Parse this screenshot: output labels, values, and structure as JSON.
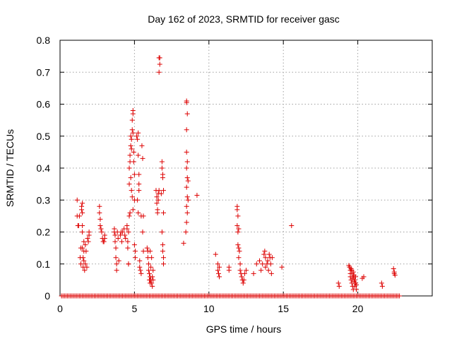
{
  "chart_data": {
    "type": "scatter",
    "title": "Day 162 of 2023, SRMTID for receiver gasc",
    "xlabel": "GPS time / hours",
    "ylabel": "SRMTID / TECUs",
    "xlim": [
      0,
      25
    ],
    "ylim": [
      0,
      0.8
    ],
    "xticks": [
      0,
      5,
      10,
      15,
      20
    ],
    "yticks": [
      0,
      0.1,
      0.2,
      0.3,
      0.4,
      0.5,
      0.6,
      0.7,
      0.8
    ],
    "xtick_labels": [
      "0",
      "5",
      "10",
      "15",
      "20"
    ],
    "ytick_labels": [
      "0",
      "0.1",
      "0.2",
      "0.3",
      "0.4",
      "0.5",
      "0.6",
      "0.7",
      "0.8"
    ],
    "grid": true,
    "marker": "+",
    "color": "#dd0000",
    "zero_band": {
      "x_start": 0.1,
      "x_end": 22.8,
      "step": 0.1,
      "y": 0
    },
    "series": [
      {
        "name": "SRMTID",
        "points": [
          [
            1.15,
            0.3
          ],
          [
            1.15,
            0.25
          ],
          [
            1.2,
            0.22
          ],
          [
            1.25,
            0.22
          ],
          [
            1.3,
            0.25
          ],
          [
            1.35,
            0.12
          ],
          [
            1.4,
            0.15
          ],
          [
            1.4,
            0.1
          ],
          [
            1.45,
            0.28
          ],
          [
            1.45,
            0.27
          ],
          [
            1.5,
            0.29
          ],
          [
            1.5,
            0.26
          ],
          [
            1.5,
            0.22
          ],
          [
            1.5,
            0.2
          ],
          [
            1.5,
            0.15
          ],
          [
            1.55,
            0.12
          ],
          [
            1.55,
            0.09
          ],
          [
            1.6,
            0.17
          ],
          [
            1.6,
            0.14
          ],
          [
            1.6,
            0.11
          ],
          [
            1.65,
            0.08
          ],
          [
            1.7,
            0.16
          ],
          [
            1.7,
            0.1
          ],
          [
            1.75,
            0.14
          ],
          [
            1.8,
            0.09
          ],
          [
            1.85,
            0.18
          ],
          [
            1.9,
            0.17
          ],
          [
            1.95,
            0.2
          ],
          [
            1.95,
            0.19
          ],
          [
            2.65,
            0.28
          ],
          [
            2.65,
            0.26
          ],
          [
            2.7,
            0.24
          ],
          [
            2.7,
            0.22
          ],
          [
            2.75,
            0.21
          ],
          [
            2.8,
            0.2
          ],
          [
            2.85,
            0.18
          ],
          [
            2.9,
            0.17
          ],
          [
            2.95,
            0.17
          ],
          [
            3.0,
            0.18
          ],
          [
            3.0,
            0.19
          ],
          [
            3.65,
            0.21
          ],
          [
            3.65,
            0.2
          ],
          [
            3.7,
            0.19
          ],
          [
            3.7,
            0.17
          ],
          [
            3.75,
            0.15
          ],
          [
            3.75,
            0.12
          ],
          [
            3.8,
            0.1
          ],
          [
            3.8,
            0.08
          ],
          [
            3.85,
            0.2
          ],
          [
            3.9,
            0.18
          ],
          [
            3.95,
            0.11
          ],
          [
            4.05,
            0.19
          ],
          [
            4.1,
            0.2
          ],
          [
            4.15,
            0.17
          ],
          [
            4.2,
            0.2
          ],
          [
            4.3,
            0.21
          ],
          [
            4.35,
            0.19
          ],
          [
            4.4,
            0.18
          ],
          [
            4.5,
            0.21
          ],
          [
            4.5,
            0.22
          ],
          [
            4.55,
            0.17
          ],
          [
            4.55,
            0.15
          ],
          [
            4.6,
            0.1
          ],
          [
            4.6,
            0.2
          ],
          [
            4.65,
            0.35
          ],
          [
            4.65,
            0.4
          ],
          [
            4.7,
            0.26
          ],
          [
            4.7,
            0.42
          ],
          [
            4.7,
            0.44
          ],
          [
            4.75,
            0.47
          ],
          [
            4.75,
            0.5
          ],
          [
            4.8,
            0.46
          ],
          [
            4.8,
            0.49
          ],
          [
            4.8,
            0.33
          ],
          [
            4.85,
            0.52
          ],
          [
            4.85,
            0.55
          ],
          [
            4.9,
            0.58
          ],
          [
            4.9,
            0.57
          ],
          [
            4.9,
            0.51
          ],
          [
            4.95,
            0.45
          ],
          [
            4.95,
            0.42
          ],
          [
            5.0,
            0.38
          ],
          [
            5.0,
            0.3
          ],
          [
            5.0,
            0.16
          ],
          [
            5.05,
            0.14
          ],
          [
            5.05,
            0.12
          ],
          [
            4.9,
            0.27
          ],
          [
            4.85,
            0.31
          ],
          [
            4.75,
            0.37
          ],
          [
            4.65,
            0.25
          ],
          [
            4.6,
            0.1
          ],
          [
            5.15,
            0.5
          ],
          [
            5.2,
            0.49
          ],
          [
            5.25,
            0.51
          ],
          [
            5.25,
            0.44
          ],
          [
            5.3,
            0.38
          ],
          [
            5.3,
            0.35
          ],
          [
            5.3,
            0.33
          ],
          [
            5.2,
            0.3
          ],
          [
            5.25,
            0.26
          ],
          [
            5.35,
            0.11
          ],
          [
            5.35,
            0.09
          ],
          [
            5.4,
            0.08
          ],
          [
            5.45,
            0.07
          ],
          [
            5.45,
            0.25
          ],
          [
            5.5,
            0.47
          ],
          [
            5.55,
            0.43
          ],
          [
            5.55,
            0.2
          ],
          [
            5.6,
            0.14
          ],
          [
            5.6,
            0.25
          ],
          [
            5.85,
            0.15
          ],
          [
            5.9,
            0.14
          ],
          [
            5.9,
            0.12
          ],
          [
            5.95,
            0.1
          ],
          [
            5.95,
            0.08
          ],
          [
            6.0,
            0.07
          ],
          [
            6.0,
            0.05
          ],
          [
            6.05,
            0.06
          ],
          [
            6.05,
            0.04
          ],
          [
            6.1,
            0.05
          ],
          [
            6.1,
            0.09
          ],
          [
            6.15,
            0.12
          ],
          [
            6.15,
            0.04
          ],
          [
            6.2,
            0.06
          ],
          [
            6.2,
            0.03
          ],
          [
            6.25,
            0.05
          ],
          [
            6.25,
            0.08
          ],
          [
            6.05,
            0.14
          ],
          [
            6.45,
            0.33
          ],
          [
            6.5,
            0.31
          ],
          [
            6.5,
            0.29
          ],
          [
            6.55,
            0.27
          ],
          [
            6.55,
            0.26
          ],
          [
            6.6,
            0.32
          ],
          [
            6.6,
            0.3
          ],
          [
            6.65,
            0.33
          ],
          [
            6.65,
            0.745
          ],
          [
            6.7,
            0.745
          ],
          [
            6.7,
            0.725
          ],
          [
            6.65,
            0.7
          ],
          [
            6.85,
            0.42
          ],
          [
            6.85,
            0.4
          ],
          [
            6.9,
            0.38
          ],
          [
            6.9,
            0.37
          ],
          [
            6.95,
            0.33
          ],
          [
            6.95,
            0.26
          ],
          [
            6.85,
            0.2
          ],
          [
            6.9,
            0.16
          ],
          [
            6.9,
            0.14
          ],
          [
            6.95,
            0.12
          ],
          [
            6.95,
            0.1
          ],
          [
            6.8,
            0.32
          ],
          [
            8.3,
            0.165
          ],
          [
            8.5,
            0.61
          ],
          [
            8.5,
            0.605
          ],
          [
            8.55,
            0.57
          ],
          [
            8.5,
            0.52
          ],
          [
            8.5,
            0.45
          ],
          [
            8.55,
            0.42
          ],
          [
            8.5,
            0.4
          ],
          [
            8.55,
            0.37
          ],
          [
            8.6,
            0.36
          ],
          [
            8.5,
            0.34
          ],
          [
            8.55,
            0.31
          ],
          [
            8.6,
            0.3
          ],
          [
            8.5,
            0.28
          ],
          [
            8.55,
            0.26
          ],
          [
            8.5,
            0.23
          ],
          [
            8.45,
            0.2
          ],
          [
            9.2,
            0.315
          ],
          [
            10.45,
            0.13
          ],
          [
            10.6,
            0.1
          ],
          [
            10.6,
            0.08
          ],
          [
            10.65,
            0.07
          ],
          [
            10.7,
            0.09
          ],
          [
            10.7,
            0.06
          ],
          [
            11.35,
            0.09
          ],
          [
            11.35,
            0.08
          ],
          [
            11.9,
            0.28
          ],
          [
            11.9,
            0.27
          ],
          [
            11.95,
            0.25
          ],
          [
            11.9,
            0.22
          ],
          [
            11.95,
            0.2
          ],
          [
            12.0,
            0.21
          ],
          [
            11.95,
            0.16
          ],
          [
            12.0,
            0.15
          ],
          [
            12.05,
            0.14
          ],
          [
            12.0,
            0.12
          ],
          [
            12.1,
            0.1
          ],
          [
            12.1,
            0.08
          ],
          [
            12.15,
            0.07
          ],
          [
            12.2,
            0.06
          ],
          [
            12.25,
            0.05
          ],
          [
            12.3,
            0.04
          ],
          [
            12.35,
            0.05
          ],
          [
            12.4,
            0.07
          ],
          [
            12.5,
            0.08
          ],
          [
            13.0,
            0.07
          ],
          [
            13.2,
            0.1
          ],
          [
            13.4,
            0.11
          ],
          [
            13.5,
            0.08
          ],
          [
            13.6,
            0.1
          ],
          [
            13.7,
            0.13
          ],
          [
            13.75,
            0.14
          ],
          [
            13.8,
            0.12
          ],
          [
            13.8,
            0.09
          ],
          [
            13.9,
            0.1
          ],
          [
            13.95,
            0.11
          ],
          [
            14.0,
            0.08
          ],
          [
            14.05,
            0.13
          ],
          [
            14.1,
            0.12
          ],
          [
            14.15,
            0.1
          ],
          [
            14.2,
            0.07
          ],
          [
            14.25,
            0.12
          ],
          [
            14.9,
            0.09
          ],
          [
            15.55,
            0.22
          ],
          [
            18.7,
            0.04
          ],
          [
            18.75,
            0.03
          ],
          [
            19.4,
            0.095
          ],
          [
            19.45,
            0.09
          ],
          [
            19.5,
            0.08
          ],
          [
            19.5,
            0.06
          ],
          [
            19.55,
            0.085
          ],
          [
            19.55,
            0.05
          ],
          [
            19.6,
            0.07
          ],
          [
            19.6,
            0.04
          ],
          [
            19.65,
            0.03
          ],
          [
            19.65,
            0.055
          ],
          [
            19.7,
            0.02
          ],
          [
            19.7,
            0.075
          ],
          [
            19.75,
            0.045
          ],
          [
            19.75,
            0.065
          ],
          [
            19.8,
            0.03
          ],
          [
            19.8,
            0.05
          ],
          [
            19.85,
            0.04
          ],
          [
            19.85,
            0.06
          ],
          [
            19.9,
            0.02
          ],
          [
            19.9,
            0.035
          ],
          [
            19.5,
            0.07
          ],
          [
            19.6,
            0.08
          ],
          [
            19.7,
            0.06
          ],
          [
            20.4,
            0.06
          ],
          [
            20.3,
            0.055
          ],
          [
            21.6,
            0.04
          ],
          [
            21.65,
            0.03
          ],
          [
            22.4,
            0.085
          ],
          [
            22.45,
            0.075
          ],
          [
            22.45,
            0.07
          ],
          [
            22.5,
            0.065
          ]
        ]
      }
    ]
  }
}
